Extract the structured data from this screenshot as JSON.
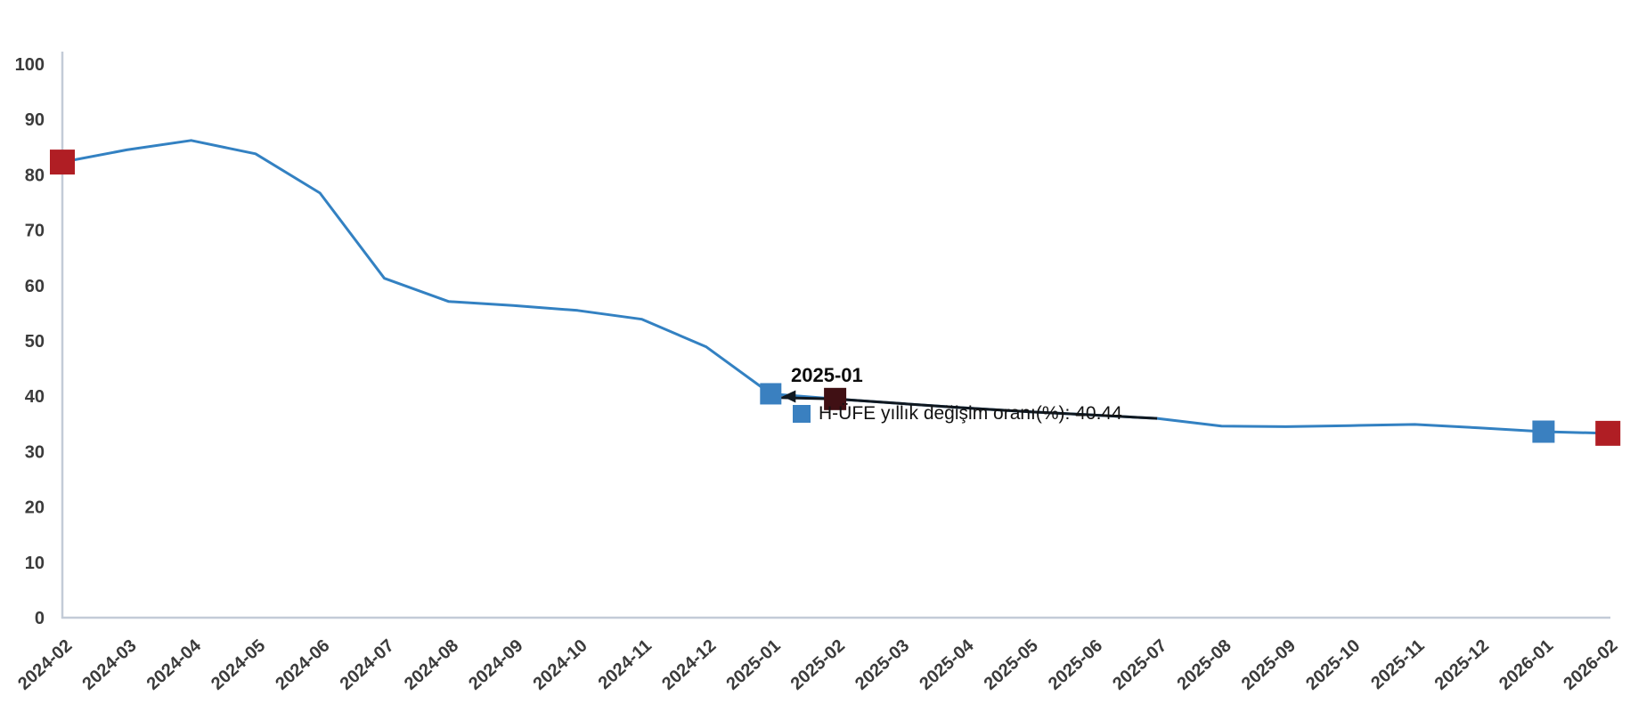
{
  "chart_data": {
    "type": "line",
    "title": "",
    "categories": [
      "2024-02",
      "2024-03",
      "2024-04",
      "2024-05",
      "2024-06",
      "2024-07",
      "2024-08",
      "2024-09",
      "2024-10",
      "2024-11",
      "2024-12",
      "2025-01",
      "2025-02",
      "2025-03",
      "2025-04",
      "2025-05",
      "2025-06",
      "2025-07",
      "2025-08",
      "2025-09",
      "2025-10",
      "2025-11",
      "2025-12",
      "2026-01",
      "2026-02"
    ],
    "series": [
      {
        "name": "H-ÜFE yıllık değişim oranı(%)",
        "values": [
          82.3,
          84.5,
          86.2,
          83.8,
          76.7,
          61.3,
          57.1,
          56.4,
          55.5,
          53.9,
          48.9,
          40.44,
          39.5,
          38.7,
          37.9,
          37.2,
          36.6,
          36.0,
          34.6,
          34.5,
          34.7,
          34.9,
          34.3,
          33.6,
          33.3
        ]
      }
    ],
    "xlabel": "",
    "ylabel": "",
    "ylim": [
      0,
      100
    ],
    "y_ticks": [
      0,
      10,
      20,
      30,
      40,
      50,
      60,
      70,
      80,
      90,
      100
    ],
    "grid": false,
    "legend_position": "none",
    "x_label_rotation": -42,
    "line_color": "#3381c2",
    "axis_color": "#c3cbd7",
    "tick_label_color": "#3b3b3b",
    "markers": [
      {
        "category": "2024-02",
        "index": 0,
        "shape": "square",
        "color": "#b01e24",
        "size": 28
      },
      {
        "category": "2025-01",
        "index": 11,
        "shape": "square",
        "color": "#3a80c0",
        "size": 24
      },
      {
        "category": "2025-02",
        "index": 12,
        "shape": "square",
        "color": "#401014",
        "size": 25
      },
      {
        "category": "2026-01",
        "index": 23,
        "shape": "square",
        "color": "#3a80c0",
        "size": 25
      },
      {
        "category": "2026-02",
        "index": 24,
        "shape": "square",
        "color": "#b01e24",
        "size": 28
      }
    ],
    "callout": {
      "title": "2025-01",
      "series_label": "H-ÜFE yıllık değişim oranı(%)",
      "value": "40.44",
      "text": "H-ÜFE yıllık değişim oranı(%): 40.44",
      "marker_color": "#3a80c0",
      "arrow_color": "#101820",
      "points_to_index": 11,
      "dark_segment_end_index": 17
    }
  }
}
